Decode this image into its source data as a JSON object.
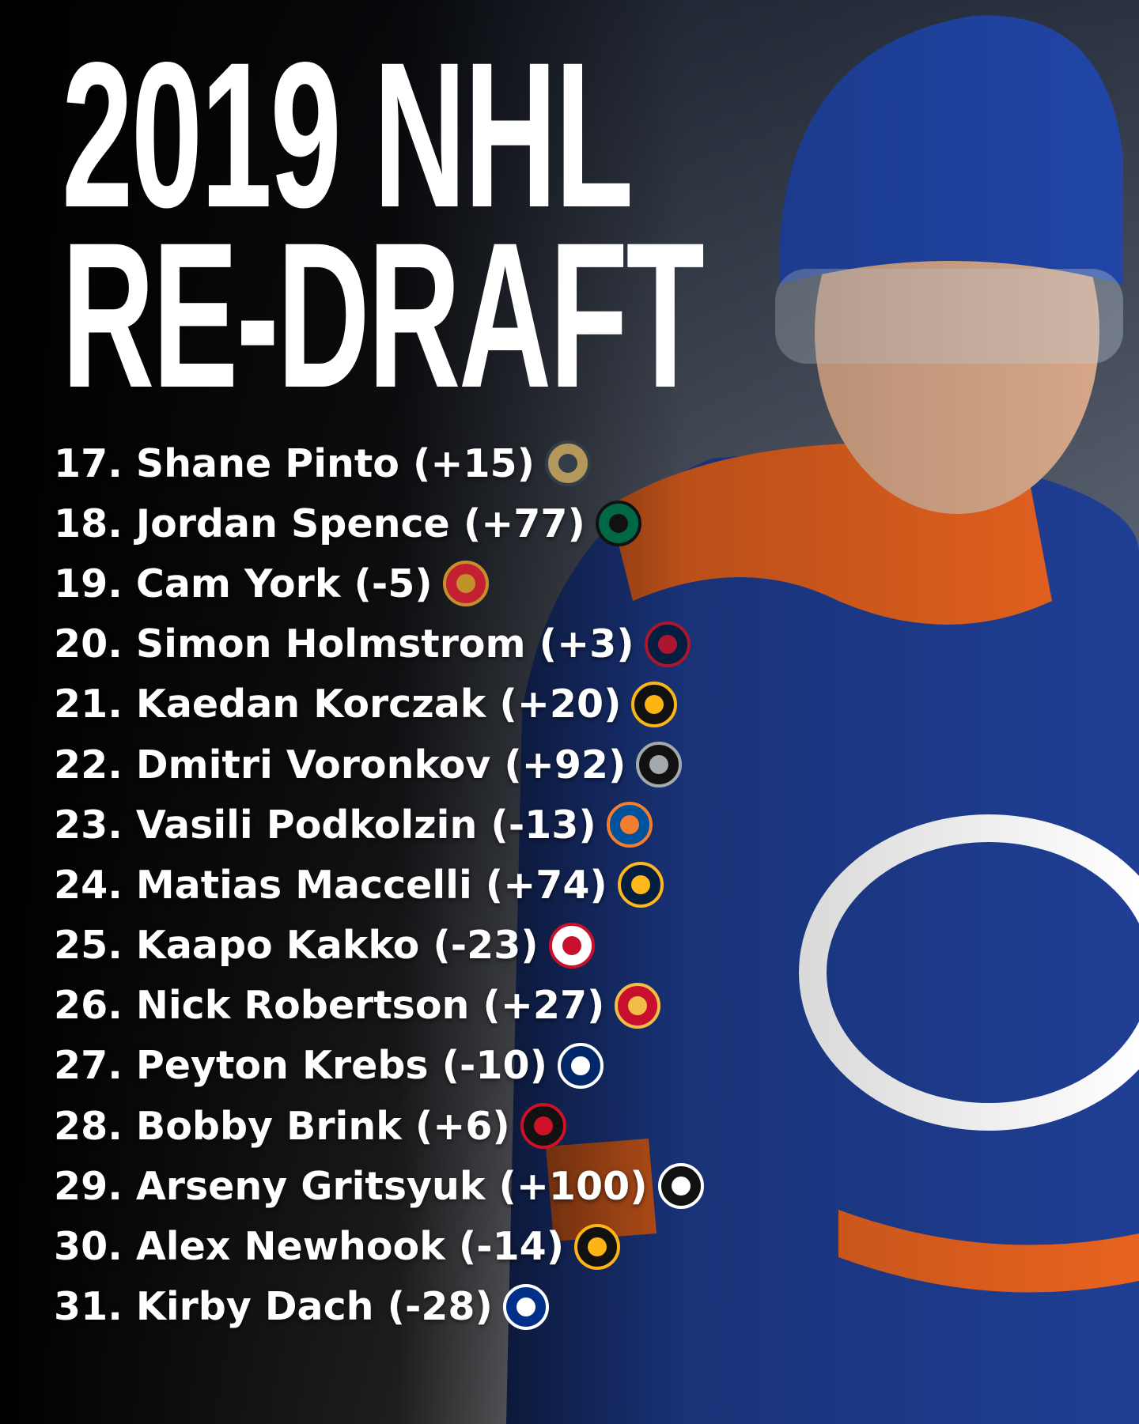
{
  "header": {
    "title_lines": [
      "2019 NHL",
      "RE-DRAFT"
    ]
  },
  "picks": [
    "17. Shane Pinto (+15)",
    "18. Jordan Spence (+77)",
    "19. Cam York (-5)",
    "20. Simon Holmstrom (+3)",
    "21. Kaedan Korczak (+20)",
    "22. Dmitri Voronkov (+92)",
    "23. Vasili Podkolzin (-13)",
    "24. Matias Maccelli (+74)",
    "25. Kaapo Kakko (-23)",
    "26. Nick Robertson (+27)",
    "27. Peyton Krebs (-10)",
    "28. Bobby Brink (+6)",
    "29. Arseny Gritsyuk (+100)",
    "30. Alex Newhook (-14)",
    "31. Kirby Dach (-28)"
  ]
}
